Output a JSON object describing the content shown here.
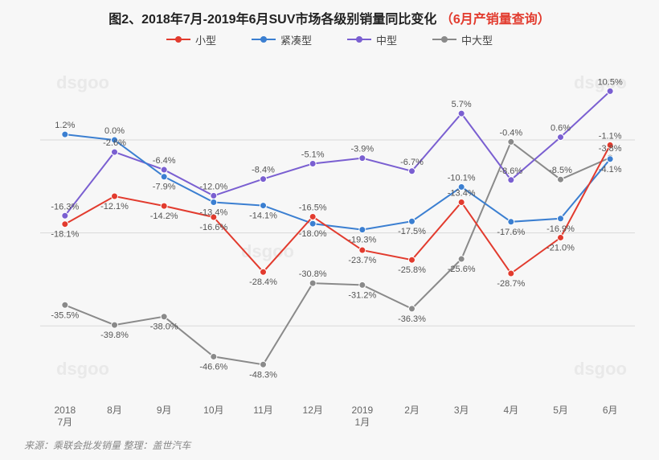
{
  "title_main": "图2、2018年7月-2019年6月SUV市场各级别销量同比变化",
  "title_red": "（6月产销量查询）",
  "title_fontsize": 16,
  "source_label": "来源：乘联会批发销量   整理：盖世汽车",
  "watermark_text": "dsgoo",
  "background_color": "#f7f7f7",
  "grid_color": "#d9d9d9",
  "label_fontsize": 11,
  "xaxis_fontsize": 12,
  "legend": [
    {
      "key": "small",
      "label": "小型",
      "color": "#e23b2e"
    },
    {
      "key": "compact",
      "label": "紧凑型",
      "color": "#3b7fd1"
    },
    {
      "key": "mid",
      "label": "中型",
      "color": "#7a5fd1"
    },
    {
      "key": "midlg",
      "label": "中大型",
      "color": "#8a8a8a"
    }
  ],
  "chart": {
    "type": "line",
    "ylim": [
      -55,
      18
    ],
    "gridline_y_values": [
      0,
      -20,
      -40
    ],
    "marker_radius": 4,
    "line_width": 2,
    "categories": [
      "2018\n7月",
      "8月",
      "9月",
      "10月",
      "11月",
      "12月",
      "2019\n1月",
      "2月",
      "3月",
      "4月",
      "5月",
      "6月"
    ],
    "series": {
      "small": {
        "color": "#e23b2e",
        "values": [
          -18.1,
          -12.1,
          -14.2,
          -16.6,
          -28.4,
          -16.5,
          -23.7,
          -25.8,
          -13.4,
          -28.7,
          -21.0,
          -1.1
        ],
        "label_pos": [
          "below",
          "below",
          "below",
          "below",
          "below",
          "above",
          "below",
          "below",
          "above",
          "below",
          "below",
          "above"
        ]
      },
      "compact": {
        "color": "#3b7fd1",
        "values": [
          1.2,
          0.0,
          -7.9,
          -13.4,
          -14.1,
          -18.0,
          -19.3,
          -17.5,
          -10.1,
          -17.6,
          -16.9,
          -4.1
        ],
        "label_pos": [
          "above",
          "above",
          "below",
          "below",
          "below",
          "below",
          "below",
          "below",
          "above",
          "below",
          "below",
          "below"
        ]
      },
      "mid": {
        "color": "#7a5fd1",
        "values": [
          -16.3,
          -2.6,
          -6.4,
          -12.0,
          -8.4,
          -5.1,
          -3.9,
          -6.7,
          5.7,
          -8.6,
          0.6,
          10.5
        ],
        "label_pos": [
          "above",
          "above",
          "above",
          "above",
          "above",
          "above",
          "above",
          "above",
          "above",
          "above",
          "above",
          "above"
        ]
      },
      "midlg": {
        "color": "#8a8a8a",
        "values": [
          -35.5,
          -39.8,
          -38.0,
          -46.6,
          -48.3,
          -30.8,
          -31.2,
          -36.3,
          -25.6,
          -0.4,
          -8.5,
          -3.8
        ],
        "label_pos": [
          "below",
          "below",
          "below",
          "below",
          "below",
          "above",
          "below",
          "below",
          "below",
          "above",
          "above",
          "above"
        ]
      }
    }
  }
}
